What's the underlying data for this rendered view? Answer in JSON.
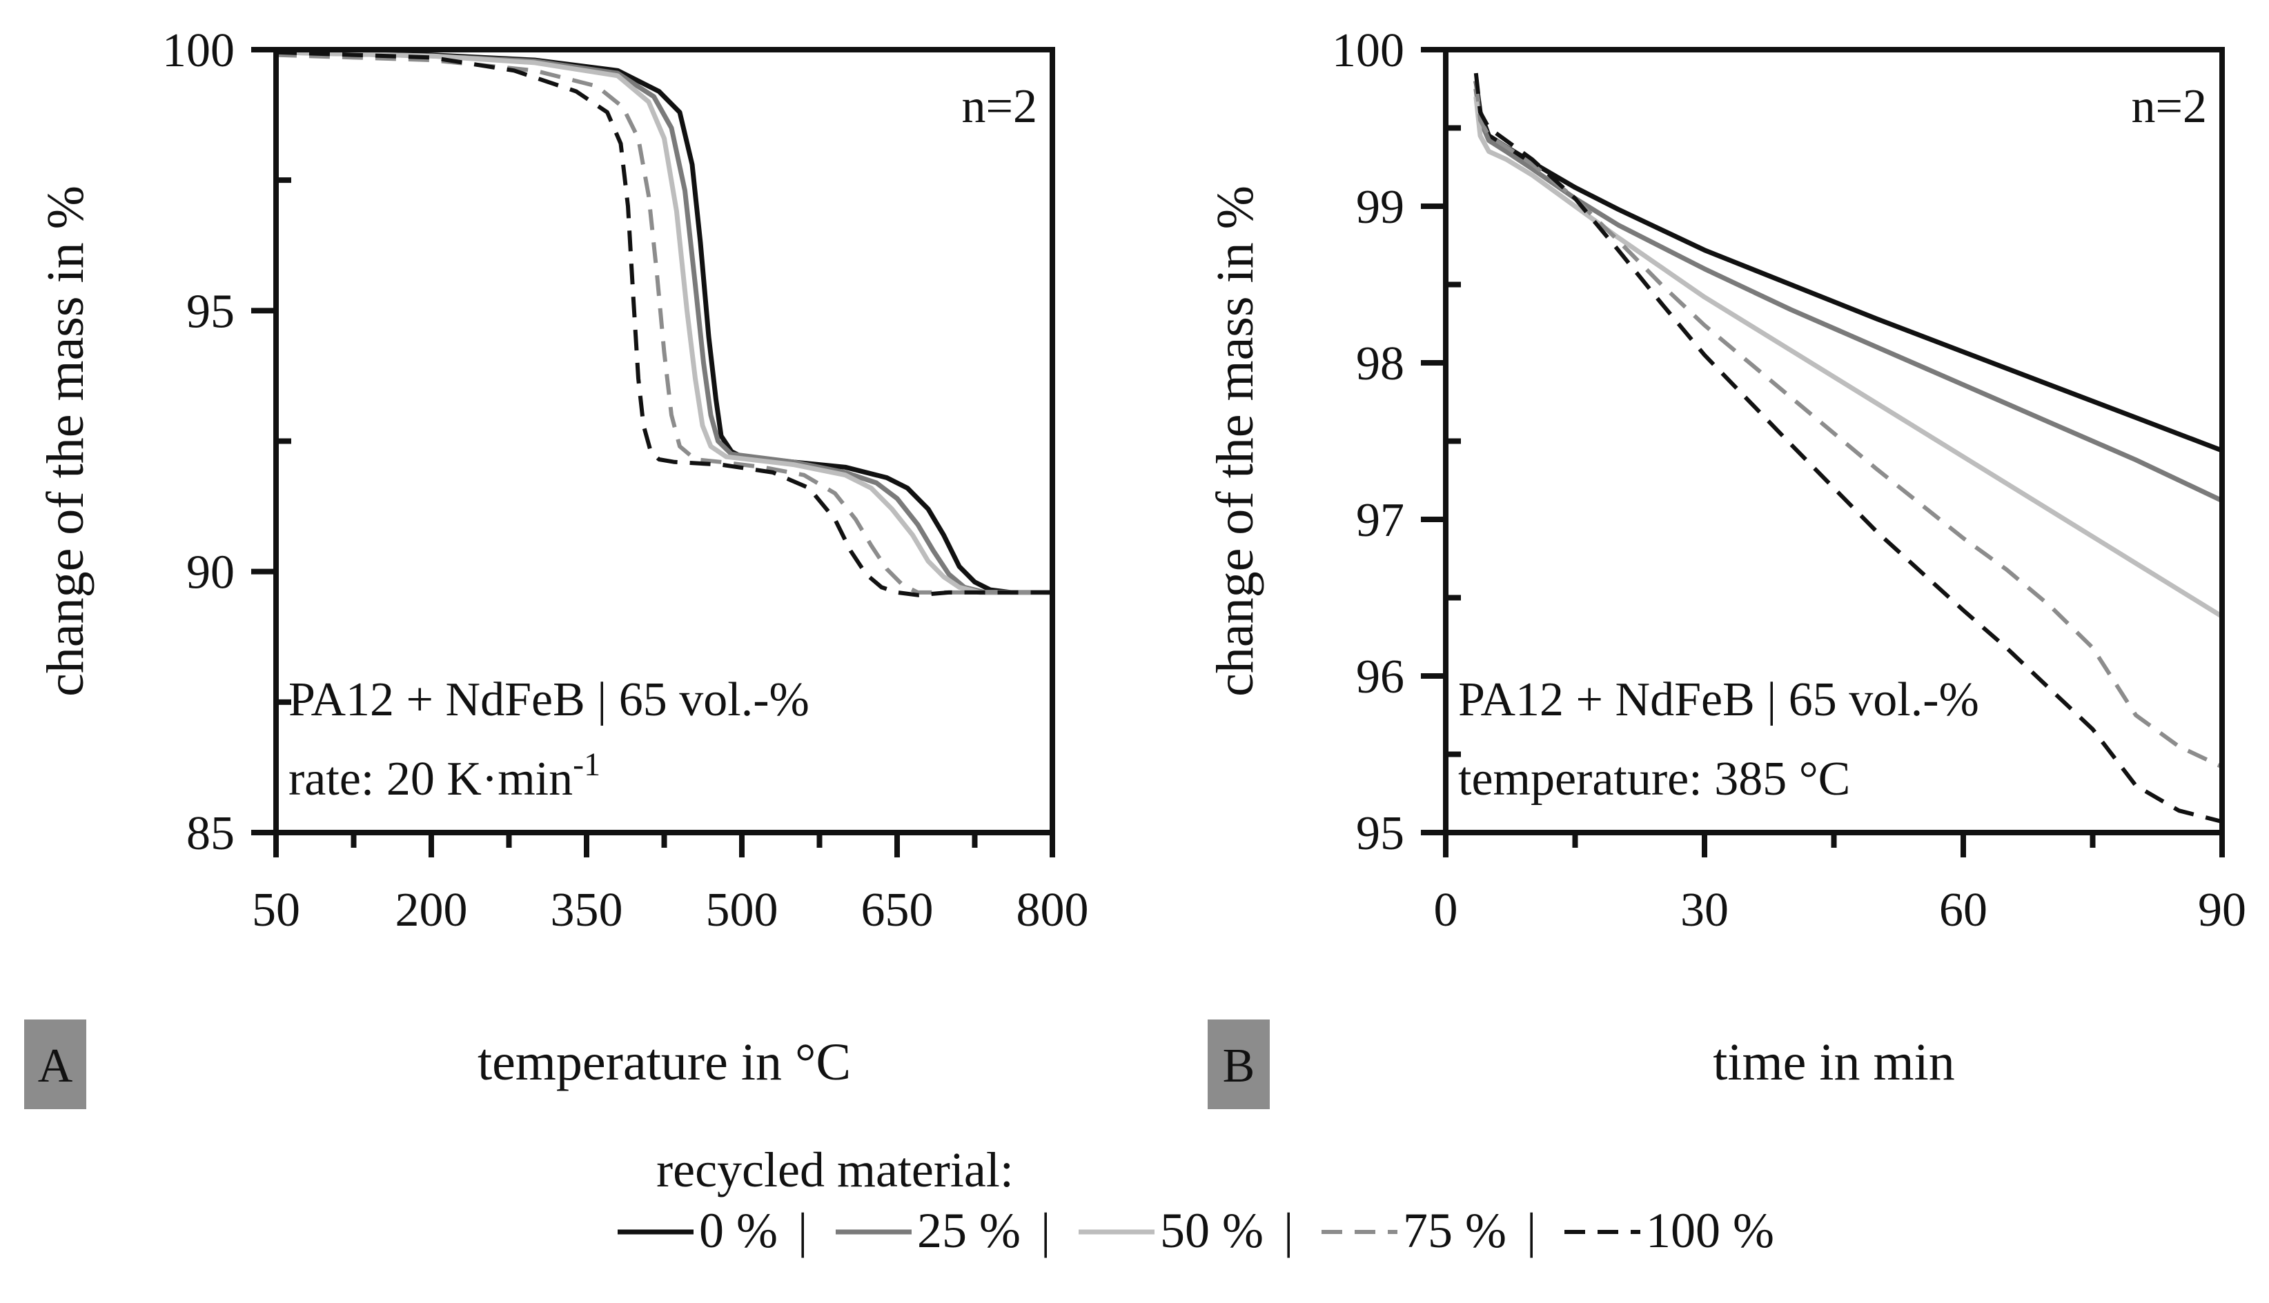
{
  "legend": {
    "title": "recycled material:",
    "separator": "|",
    "entries": [
      {
        "label": "0 %",
        "color": "#111111",
        "dash": "solid"
      },
      {
        "label": "25 %",
        "color": "#7a7a7a",
        "dash": "solid"
      },
      {
        "label": "50 %",
        "color": "#bdbdbd",
        "dash": "solid"
      },
      {
        "label": "75 %",
        "color": "#8c8c8c",
        "dash": "dashed"
      },
      {
        "label": "100 %",
        "color": "#111111",
        "dash": "dashed"
      }
    ]
  },
  "chart_data": [
    {
      "type": "line",
      "panel_label": "A",
      "annotation_top": "n=2",
      "annotation_line1": "PA12 + NdFeB | 65 vol.-%",
      "annotation_line2_prefix": "rate: 20 K·min",
      "annotation_line2_sup": "-1",
      "xlabel": "temperature in °C",
      "ylabel": "change of the mass in %",
      "xlim": [
        50,
        800
      ],
      "ylim": [
        85,
        100
      ],
      "xticks": [
        50,
        200,
        350,
        500,
        650,
        800
      ],
      "xtick_labels": [
        "50",
        "200",
        "350",
        "500",
        "650",
        "800"
      ],
      "yticks": [
        85,
        90,
        95,
        100
      ],
      "ytick_labels": [
        "85",
        "90",
        "95",
        "100"
      ],
      "grid": false,
      "series": [
        {
          "name": "0 %",
          "x": [
            50,
            200,
            300,
            380,
            420,
            440,
            452,
            460,
            468,
            475,
            480,
            490,
            500,
            550,
            600,
            640,
            660,
            680,
            695,
            710,
            725,
            740,
            760,
            800
          ],
          "y": [
            99.95,
            99.9,
            99.8,
            99.6,
            99.2,
            98.8,
            97.8,
            96.3,
            94.5,
            93.3,
            92.6,
            92.3,
            92.2,
            92.1,
            92.0,
            91.8,
            91.6,
            91.2,
            90.7,
            90.1,
            89.8,
            89.65,
            89.6,
            89.6
          ]
        },
        {
          "name": "25 %",
          "x": [
            50,
            200,
            300,
            380,
            415,
            432,
            445,
            455,
            463,
            470,
            477,
            490,
            550,
            600,
            630,
            650,
            670,
            685,
            700,
            715,
            735,
            760,
            800
          ],
          "y": [
            99.95,
            99.88,
            99.78,
            99.55,
            99.1,
            98.5,
            97.3,
            95.5,
            94.0,
            93.0,
            92.5,
            92.25,
            92.1,
            91.9,
            91.7,
            91.4,
            90.9,
            90.4,
            89.95,
            89.7,
            89.6,
            89.6,
            89.6
          ]
        },
        {
          "name": "50 %",
          "x": [
            50,
            200,
            300,
            380,
            410,
            425,
            437,
            447,
            455,
            462,
            470,
            485,
            550,
            600,
            625,
            645,
            665,
            680,
            695,
            710,
            730,
            760,
            800
          ],
          "y": [
            99.95,
            99.88,
            99.75,
            99.5,
            99.0,
            98.3,
            96.9,
            95.0,
            93.7,
            92.8,
            92.4,
            92.2,
            92.05,
            91.85,
            91.6,
            91.2,
            90.7,
            90.2,
            89.9,
            89.7,
            89.6,
            89.6,
            89.6
          ]
        },
        {
          "name": "75 %",
          "x": [
            50,
            200,
            300,
            360,
            385,
            400,
            410,
            418,
            425,
            432,
            440,
            455,
            480,
            520,
            560,
            590,
            610,
            625,
            640,
            655,
            670,
            690,
            720,
            800
          ],
          "y": [
            99.9,
            99.8,
            99.6,
            99.3,
            98.9,
            98.3,
            97.2,
            95.7,
            94.2,
            93.0,
            92.4,
            92.15,
            92.1,
            92.0,
            91.85,
            91.5,
            91.0,
            90.5,
            90.05,
            89.75,
            89.6,
            89.6,
            89.6,
            89.6
          ]
        },
        {
          "name": "100 %",
          "x": [
            50,
            200,
            280,
            340,
            370,
            383,
            390,
            395,
            400,
            405,
            412,
            420,
            435,
            480,
            530,
            565,
            590,
            605,
            620,
            635,
            650,
            670,
            700,
            800
          ],
          "y": [
            99.95,
            99.85,
            99.6,
            99.2,
            98.8,
            98.2,
            97.0,
            95.3,
            93.7,
            92.8,
            92.3,
            92.15,
            92.1,
            92.05,
            91.9,
            91.6,
            91.0,
            90.4,
            89.95,
            89.7,
            89.6,
            89.55,
            89.6,
            89.6
          ]
        }
      ]
    },
    {
      "type": "line",
      "panel_label": "B",
      "annotation_top": "n=2",
      "annotation_line1": "PA12 + NdFeB | 65 vol.-%",
      "annotation_line2_prefix": "temperature: 385 °C",
      "annotation_line2_sup": "",
      "xlabel": "time in min",
      "ylabel": "change of the mass in %",
      "xlim": [
        0,
        90
      ],
      "ylim": [
        95,
        100
      ],
      "xticks": [
        0,
        30,
        60,
        90
      ],
      "xtick_labels": [
        "0",
        "30",
        "60",
        "90"
      ],
      "yticks": [
        95,
        96,
        97,
        98,
        99,
        100
      ],
      "ytick_labels": [
        "95",
        "96",
        "97",
        "98",
        "99",
        "100"
      ],
      "grid": false,
      "series": [
        {
          "name": "0 %",
          "x": [
            3.5,
            4.0,
            5,
            7,
            10,
            15,
            20,
            30,
            40,
            50,
            60,
            70,
            80,
            90
          ],
          "y": [
            99.8,
            99.6,
            99.45,
            99.38,
            99.28,
            99.12,
            98.98,
            98.72,
            98.5,
            98.28,
            98.07,
            97.86,
            97.65,
            97.44
          ]
        },
        {
          "name": "25 %",
          "x": [
            3.5,
            4.0,
            5,
            7,
            10,
            15,
            20,
            30,
            40,
            50,
            60,
            70,
            80,
            90
          ],
          "y": [
            99.75,
            99.55,
            99.42,
            99.35,
            99.24,
            99.05,
            98.88,
            98.6,
            98.34,
            98.1,
            97.86,
            97.62,
            97.38,
            97.12
          ]
        },
        {
          "name": "50 %",
          "x": [
            3.5,
            4.0,
            5,
            7,
            10,
            15,
            20,
            30,
            40,
            50,
            60,
            70,
            80,
            90
          ],
          "y": [
            99.7,
            99.45,
            99.35,
            99.3,
            99.2,
            99.0,
            98.8,
            98.42,
            98.08,
            97.74,
            97.4,
            97.06,
            96.72,
            96.38
          ]
        },
        {
          "name": "75 %",
          "x": [
            3.5,
            4.0,
            5,
            7,
            10,
            15,
            20,
            25,
            30,
            40,
            50,
            60,
            65,
            70,
            75,
            80,
            85,
            90
          ],
          "y": [
            99.8,
            99.55,
            99.45,
            99.38,
            99.27,
            99.05,
            98.78,
            98.5,
            98.24,
            97.78,
            97.32,
            96.88,
            96.68,
            96.45,
            96.18,
            95.75,
            95.55,
            95.42
          ]
        },
        {
          "name": "100 %",
          "x": [
            3.5,
            4.0,
            5,
            7,
            10,
            15,
            20,
            25,
            30,
            40,
            50,
            60,
            65,
            70,
            75,
            80,
            85,
            90
          ],
          "y": [
            99.85,
            99.6,
            99.5,
            99.42,
            99.3,
            99.05,
            98.72,
            98.38,
            98.05,
            97.48,
            96.92,
            96.42,
            96.18,
            95.92,
            95.66,
            95.3,
            95.14,
            95.07
          ]
        }
      ]
    }
  ]
}
